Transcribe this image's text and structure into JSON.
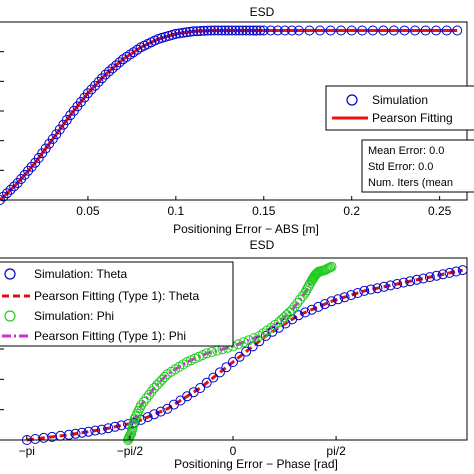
{
  "chart_data": [
    {
      "type": "scatter",
      "title": "ESD",
      "xlabel": "Positioning Error − ABS [m]",
      "ylabel": "",
      "xlim": [
        0,
        0.265
      ],
      "ylim": [
        0,
        1.05
      ],
      "grid": false,
      "x_ticks": [
        0.05,
        0.1,
        0.15,
        0.2,
        0.25
      ],
      "x_tick_labels": [
        "0.05",
        "0.1",
        "0.15",
        "0.2",
        "0.25"
      ],
      "legend_position": "right",
      "legend": [
        "Simulation",
        "Pearson Fitting"
      ],
      "series": [
        {
          "name": "Simulation",
          "marker": "circle",
          "color": "#0000cc",
          "x": [
            0.0,
            0.01,
            0.02,
            0.03,
            0.04,
            0.05,
            0.06,
            0.07,
            0.08,
            0.09,
            0.1,
            0.11,
            0.12,
            0.13,
            0.14,
            0.15,
            0.17,
            0.2,
            0.23,
            0.26
          ],
          "y": [
            0.0,
            0.1,
            0.22,
            0.36,
            0.5,
            0.63,
            0.74,
            0.83,
            0.9,
            0.95,
            0.98,
            0.995,
            1.0,
            1.0,
            1.0,
            1.0,
            1.0,
            1.0,
            1.0,
            1.0
          ]
        },
        {
          "name": "Pearson Fitting",
          "line": "solid",
          "color": "#ee1111",
          "x": [
            0.0,
            0.01,
            0.02,
            0.03,
            0.04,
            0.05,
            0.06,
            0.07,
            0.08,
            0.09,
            0.1,
            0.11,
            0.12,
            0.13,
            0.14,
            0.15,
            0.17,
            0.2,
            0.23,
            0.26
          ],
          "y": [
            0.0,
            0.1,
            0.22,
            0.36,
            0.5,
            0.63,
            0.74,
            0.83,
            0.9,
            0.95,
            0.98,
            0.995,
            1.0,
            1.0,
            1.0,
            1.0,
            1.0,
            1.0,
            1.0,
            1.0
          ]
        }
      ],
      "annotations": [
        "Mean Error: 0.0",
        "Std Error: 0.0",
        "Num. Iters (mean"
      ]
    },
    {
      "type": "scatter",
      "title": "ESD",
      "xlabel": "Positioning Error − Phase [rad]",
      "ylabel": "",
      "xlim": [
        -3.55,
        3.55
      ],
      "ylim": [
        0,
        1.05
      ],
      "grid": false,
      "x_ticks": [
        -3.1416,
        -1.5708,
        0,
        1.5708
      ],
      "x_tick_labels": [
        "−pi",
        "−pi/2",
        "0",
        "pi/2"
      ],
      "legend_position": "top-left",
      "legend": [
        "Simulation: Theta",
        "Pearson Fitting (Type 1): Theta",
        "Simulation: Phi",
        "Pearson Fitting (Type 1): Phi"
      ],
      "series": [
        {
          "name": "Simulation: Theta",
          "marker": "circle",
          "color": "#0000cc",
          "x": [
            -3.14,
            -2.5,
            -2.0,
            -1.5,
            -1.0,
            -0.5,
            0.0,
            0.5,
            1.0,
            1.5,
            2.0,
            2.5,
            3.0,
            3.5
          ],
          "y": [
            0.0,
            0.03,
            0.06,
            0.1,
            0.18,
            0.3,
            0.45,
            0.6,
            0.72,
            0.8,
            0.86,
            0.9,
            0.94,
            0.98
          ]
        },
        {
          "name": "Pearson Fitting (Type 1): Theta",
          "line": "dashed",
          "color": "#dd1111",
          "x": [
            -3.14,
            -2.5,
            -2.0,
            -1.5,
            -1.0,
            -0.5,
            0.0,
            0.5,
            1.0,
            1.5,
            2.0,
            2.5,
            3.0,
            3.5
          ],
          "y": [
            0.0,
            0.03,
            0.06,
            0.1,
            0.18,
            0.3,
            0.45,
            0.6,
            0.72,
            0.8,
            0.86,
            0.9,
            0.94,
            0.98
          ]
        },
        {
          "name": "Simulation: Phi",
          "marker": "circle",
          "color": "#22cc22",
          "x": [
            -1.6,
            -1.55,
            -1.5,
            -1.4,
            -1.2,
            -1.0,
            -0.7,
            -0.4,
            0.0,
            0.4,
            0.7,
            0.9,
            1.1,
            1.2,
            1.25,
            1.3,
            1.4,
            1.5
          ],
          "y": [
            0.0,
            0.04,
            0.12,
            0.2,
            0.3,
            0.38,
            0.45,
            0.5,
            0.54,
            0.6,
            0.68,
            0.75,
            0.85,
            0.92,
            0.95,
            0.97,
            0.98,
            1.0
          ]
        },
        {
          "name": "Pearson Fitting (Type 1): Phi",
          "line": "dashdot",
          "color": "#cc33cc",
          "x": [
            -1.6,
            -1.55,
            -1.5,
            -1.4,
            -1.2,
            -1.0,
            -0.7,
            -0.4,
            0.0,
            0.4,
            0.7,
            0.9,
            1.1,
            1.2
          ],
          "y": [
            0.0,
            0.04,
            0.12,
            0.2,
            0.3,
            0.38,
            0.45,
            0.5,
            0.54,
            0.6,
            0.68,
            0.75,
            0.85,
            0.92
          ]
        }
      ]
    }
  ]
}
